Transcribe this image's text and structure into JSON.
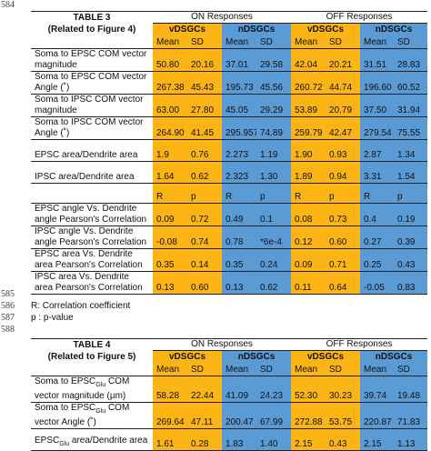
{
  "line_numbers": [
    "584",
    "585",
    "586",
    "587",
    "588"
  ],
  "table3": {
    "title": "TABLE 3",
    "subtitle": "(Related to Figure 4)",
    "on_header": "ON Responses",
    "off_header": "OFF Responses",
    "groups": [
      "vDSGCs",
      "nDSGCs",
      "vDSGCs",
      "nDSGCs"
    ],
    "stat_labels": [
      "Mean",
      "SD",
      "Mean",
      "SD",
      "Mean",
      "SD",
      "Mean",
      "SD"
    ],
    "rows": [
      {
        "label": "Soma to EPSC COM vector magnitude",
        "values": [
          "50.80",
          "20.16",
          "37.01",
          "29.58",
          "42.04",
          "20.21",
          "31.51",
          "28.83"
        ]
      },
      {
        "label": "Soma to EPSC COM vector Angle (˚)",
        "values": [
          "267.38",
          "45.43",
          "195.73",
          "45.56",
          "260.72",
          "44.74",
          "196.60",
          "60.52"
        ]
      },
      {
        "label": "Soma to IPSC COM vector magnitude",
        "values": [
          "63.00",
          "27.80",
          "45.05",
          "29.29",
          "53.89",
          "20.79",
          "37.50",
          "31.94"
        ]
      },
      {
        "label": "Soma to IPSC COM vector Angle (˚)",
        "values": [
          "264.90",
          "41.45",
          "295.957",
          "74.89",
          "259.79",
          "42.47",
          "279.54",
          "75.55"
        ]
      },
      {
        "label": "EPSC area/Dendrite area",
        "values": [
          "1.9",
          "0.76",
          "2.273",
          "1.19",
          "1.90",
          "0.93",
          "2.87",
          "1.34"
        ]
      },
      {
        "label": "IPSC area/Dendrite area",
        "values": [
          "1.64",
          "0.62",
          "2.323",
          "1.30",
          "1.89",
          "0.94",
          "3.31",
          "1.54"
        ]
      }
    ],
    "corr_labels": [
      "R",
      "p",
      "R",
      "p",
      "R",
      "p",
      "R",
      "p"
    ],
    "corr_rows": [
      {
        "label": "EPSC angle Vs. Dendrite angle Pearson's Correlation",
        "values": [
          "0.09",
          "0.72",
          "0.49",
          "0.1",
          "0.08",
          "0.73",
          "0.4",
          "0.19"
        ]
      },
      {
        "label": "IPSC angle Vs. Dendrite angle Pearson's Correlation",
        "values": [
          "-0.08",
          "0.74",
          "0.78",
          "*6e-4",
          "0.12",
          "0.60",
          "0.27",
          "0.39"
        ]
      },
      {
        "label": "EPSC area Vs. Dendrite area Pearson's Correlation",
        "values": [
          "0.35",
          "0.14",
          "0.35",
          "0.24",
          "0.09",
          "0.71",
          "0.25",
          "0.43"
        ]
      },
      {
        "label": "IPSC area Vs. Dendrite area Pearson's Correlation",
        "values": [
          "0.13",
          "0.60",
          "0.13",
          "0.62",
          "0.11",
          "0.64",
          "-0.05",
          "0.83"
        ]
      }
    ]
  },
  "notes": [
    "R: Correlation coefficient",
    "p : p-value"
  ],
  "table4": {
    "title": "TABLE 4",
    "subtitle": "(Related to Figure 5)",
    "on_header": "ON Responses",
    "off_header": "OFF Responses",
    "groups": [
      "vDSGCs",
      "nDSGCs",
      "vDSGCs",
      "nDSGCs"
    ],
    "stat_labels": [
      "Mean",
      "SD",
      "Mean",
      "SD",
      "Mean",
      "SD",
      "Mean",
      "SD"
    ],
    "rows": [
      {
        "label_pre": "Soma to EPSC",
        "label_sub": "Glu",
        "label_post": " COM vector magnitude (µm)",
        "values": [
          "58.28",
          "22.44",
          "41.09",
          "24.23",
          "52.30",
          "30.23",
          "39.74",
          "19.48"
        ]
      },
      {
        "label_pre": "Soma to EPSC",
        "label_sub": "Glu",
        "label_post": " COM vector Angle (˚)",
        "values": [
          "269.64",
          "47.11",
          "200.47",
          "67.99",
          "272.88",
          "53.75",
          "220.87",
          "71.83"
        ]
      },
      {
        "label_pre": "EPSC",
        "label_sub": "Glu",
        "label_post": " area/Dendrite area",
        "values": [
          "1.61",
          "0.28",
          "1.83",
          "1.40",
          "2.15",
          "0.43",
          "2.15",
          "1.13"
        ]
      }
    ]
  }
}
